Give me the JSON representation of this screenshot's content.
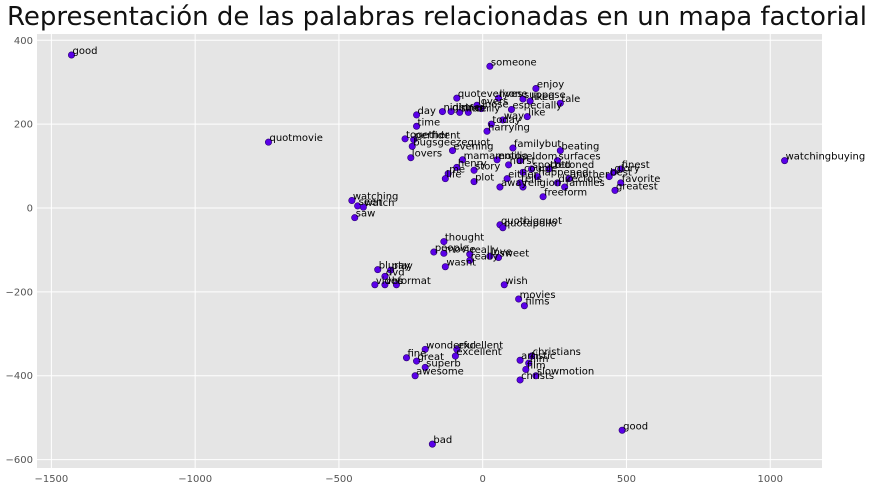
{
  "chart_data": {
    "type": "scatter",
    "title": "Representación de las palabras relacionadas en un mapa factorial",
    "xlabel": "",
    "ylabel": "",
    "xlim": [
      -1550,
      1180
    ],
    "ylim": [
      -620,
      415
    ],
    "xticks": [
      -1500,
      -1000,
      -500,
      0,
      500,
      1000
    ],
    "yticks": [
      -600,
      -400,
      -200,
      0,
      200,
      400
    ],
    "grid": true,
    "colors": {
      "point": "#5a00e8",
      "background": "#e5e5e5",
      "grid": "#ffffff"
    },
    "points": [
      {
        "x": -1430,
        "y": 365,
        "label": "good"
      },
      {
        "x": 25,
        "y": 338,
        "label": "someone"
      },
      {
        "x": 185,
        "y": 285,
        "label": "enjoy"
      },
      {
        "x": -90,
        "y": 262,
        "label": "quoteveryone"
      },
      {
        "x": 55,
        "y": 262,
        "label": "lives"
      },
      {
        "x": 140,
        "y": 260,
        "label": "suppose"
      },
      {
        "x": 165,
        "y": 255,
        "label": "liked"
      },
      {
        "x": 270,
        "y": 250,
        "label": "tale"
      },
      {
        "x": -20,
        "y": 245,
        "label": "lovers"
      },
      {
        "x": -5,
        "y": 237,
        "label": "loose"
      },
      {
        "x": 100,
        "y": 235,
        "label": "especially"
      },
      {
        "x": -140,
        "y": 230,
        "label": "night"
      },
      {
        "x": -110,
        "y": 230,
        "label": "dinner"
      },
      {
        "x": -80,
        "y": 228,
        "label": "since"
      },
      {
        "x": -50,
        "y": 228,
        "label": "family"
      },
      {
        "x": -230,
        "y": 222,
        "label": "day"
      },
      {
        "x": 155,
        "y": 218,
        "label": "like"
      },
      {
        "x": 70,
        "y": 210,
        "label": "way"
      },
      {
        "x": -230,
        "y": 195,
        "label": "time"
      },
      {
        "x": 30,
        "y": 200,
        "label": "today"
      },
      {
        "x": 15,
        "y": 183,
        "label": "harrying"
      },
      {
        "x": -270,
        "y": 165,
        "label": "together"
      },
      {
        "x": -240,
        "y": 163,
        "label": "perfident"
      },
      {
        "x": -745,
        "y": 157,
        "label": "quotmovie"
      },
      {
        "x": -245,
        "y": 147,
        "label": "bugsgeezequot"
      },
      {
        "x": 105,
        "y": 143,
        "label": "familybut"
      },
      {
        "x": 270,
        "y": 137,
        "label": "beating"
      },
      {
        "x": -105,
        "y": 137,
        "label": "evening"
      },
      {
        "x": -250,
        "y": 120,
        "label": "lovers"
      },
      {
        "x": -70,
        "y": 115,
        "label": "mamamoto"
      },
      {
        "x": 50,
        "y": 115,
        "label": "emilia"
      },
      {
        "x": 130,
        "y": 113,
        "label": "seldom"
      },
      {
        "x": 260,
        "y": 113,
        "label": "surfaces"
      },
      {
        "x": 90,
        "y": 103,
        "label": "hurst"
      },
      {
        "x": -90,
        "y": 97,
        "label": "henry"
      },
      {
        "x": 170,
        "y": 93,
        "label": "spotted"
      },
      {
        "x": 230,
        "y": 93,
        "label": "cottoned"
      },
      {
        "x": 480,
        "y": 93,
        "label": "finest"
      },
      {
        "x": 1050,
        "y": 113,
        "label": "watchingbuying"
      },
      {
        "x": -30,
        "y": 90,
        "label": "story"
      },
      {
        "x": 140,
        "y": 85,
        "label": "couple"
      },
      {
        "x": 455,
        "y": 85,
        "label": "glory"
      },
      {
        "x": -120,
        "y": 82,
        "label": "me"
      },
      {
        "x": -130,
        "y": 70,
        "label": "life"
      },
      {
        "x": 85,
        "y": 70,
        "label": "either"
      },
      {
        "x": 190,
        "y": 75,
        "label": "happened"
      },
      {
        "x": 300,
        "y": 70,
        "label": "another"
      },
      {
        "x": 440,
        "y": 75,
        "label": "best"
      },
      {
        "x": -30,
        "y": 63,
        "label": "plot"
      },
      {
        "x": 130,
        "y": 60,
        "label": "tells"
      },
      {
        "x": 260,
        "y": 60,
        "label": "directors"
      },
      {
        "x": 480,
        "y": 60,
        "label": "favorite"
      },
      {
        "x": 60,
        "y": 50,
        "label": "away"
      },
      {
        "x": 140,
        "y": 50,
        "label": "religion"
      },
      {
        "x": 285,
        "y": 50,
        "label": "families"
      },
      {
        "x": 460,
        "y": 42,
        "label": "greatest"
      },
      {
        "x": 210,
        "y": 27,
        "label": "freeform"
      },
      {
        "x": -455,
        "y": 18,
        "label": "watching"
      },
      {
        "x": -435,
        "y": 5,
        "label": "seen"
      },
      {
        "x": -415,
        "y": 2,
        "label": "watch"
      },
      {
        "x": -445,
        "y": -23,
        "label": "saw"
      },
      {
        "x": 60,
        "y": -40,
        "label": "quotbigquot"
      },
      {
        "x": 70,
        "y": -47,
        "label": "quotapollo"
      },
      {
        "x": -135,
        "y": -80,
        "label": "thought"
      },
      {
        "x": -170,
        "y": -105,
        "label": "people"
      },
      {
        "x": -135,
        "y": -108,
        "label": "movie"
      },
      {
        "x": -45,
        "y": -110,
        "label": "really"
      },
      {
        "x": 25,
        "y": -115,
        "label": "love"
      },
      {
        "x": 55,
        "y": -118,
        "label": "sweet"
      },
      {
        "x": -45,
        "y": -125,
        "label": "really"
      },
      {
        "x": -130,
        "y": -140,
        "label": "wasnt"
      },
      {
        "x": -365,
        "y": -147,
        "label": "bluray"
      },
      {
        "x": -320,
        "y": -148,
        "label": "play"
      },
      {
        "x": -340,
        "y": -163,
        "label": "dvd"
      },
      {
        "x": -375,
        "y": -183,
        "label": "video"
      },
      {
        "x": -340,
        "y": -183,
        "label": "vhs"
      },
      {
        "x": -300,
        "y": -183,
        "label": "format"
      },
      {
        "x": 75,
        "y": -183,
        "label": "wish"
      },
      {
        "x": 125,
        "y": -217,
        "label": "movies"
      },
      {
        "x": 145,
        "y": -233,
        "label": "films"
      },
      {
        "x": -200,
        "y": -337,
        "label": "wonderful"
      },
      {
        "x": -90,
        "y": -337,
        "label": "excellent"
      },
      {
        "x": -95,
        "y": -353,
        "label": "excellent"
      },
      {
        "x": -265,
        "y": -357,
        "label": "fine"
      },
      {
        "x": 170,
        "y": -353,
        "label": "christians"
      },
      {
        "x": 130,
        "y": -363,
        "label": "artistic"
      },
      {
        "x": -230,
        "y": -365,
        "label": "great"
      },
      {
        "x": 160,
        "y": -370,
        "label": "film"
      },
      {
        "x": -200,
        "y": -380,
        "label": "superb"
      },
      {
        "x": 150,
        "y": -385,
        "label": "film"
      },
      {
        "x": 185,
        "y": -400,
        "label": "slowmotion"
      },
      {
        "x": -235,
        "y": -400,
        "label": "awesome"
      },
      {
        "x": 130,
        "y": -410,
        "label": "christs"
      },
      {
        "x": 485,
        "y": -530,
        "label": "good"
      },
      {
        "x": -175,
        "y": -563,
        "label": "bad"
      }
    ]
  }
}
